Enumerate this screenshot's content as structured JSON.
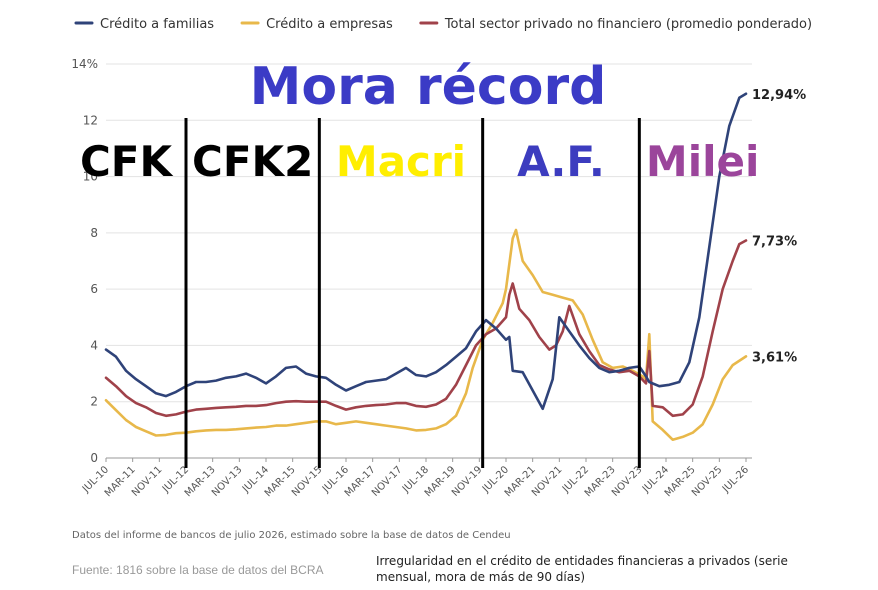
{
  "chart_data": {
    "type": "line",
    "title": "Mora récord",
    "y_unit": "%",
    "ylim": [
      0,
      14
    ],
    "yticks": [
      "0",
      "2",
      "4",
      "6",
      "8",
      "10",
      "12",
      "14%"
    ],
    "grid": true,
    "legend_position": "top-left",
    "x_ticks": [
      "JUL-10",
      "MAR-11",
      "NOV-11",
      "JUL-12",
      "MAR-13",
      "NOV-13",
      "JUL-14",
      "MAR-15",
      "NOV-15",
      "JUL-16",
      "MAR-17",
      "NOV-17",
      "JUL-18",
      "MAR-19",
      "NOV-19",
      "JUL-20",
      "MAR-21",
      "NOV-21",
      "JUL-22",
      "MAR-23",
      "NOV-23",
      "JUL-24",
      "MAR-25",
      "NOV-25",
      "JUL-26"
    ],
    "x_index_domain": [
      0,
      192
    ],
    "series": [
      {
        "name": "Crédito a familias",
        "color": "#2f4379",
        "end_label": "12,94%",
        "points": [
          [
            0,
            3.85
          ],
          [
            3,
            3.6
          ],
          [
            6,
            3.1
          ],
          [
            9,
            2.8
          ],
          [
            12,
            2.55
          ],
          [
            15,
            2.3
          ],
          [
            18,
            2.2
          ],
          [
            21,
            2.35
          ],
          [
            24,
            2.55
          ],
          [
            27,
            2.7
          ],
          [
            30,
            2.7
          ],
          [
            33,
            2.75
          ],
          [
            36,
            2.85
          ],
          [
            39,
            2.9
          ],
          [
            42,
            3.0
          ],
          [
            45,
            2.85
          ],
          [
            48,
            2.65
          ],
          [
            51,
            2.9
          ],
          [
            54,
            3.2
          ],
          [
            57,
            3.25
          ],
          [
            60,
            3.0
          ],
          [
            63,
            2.9
          ],
          [
            66,
            2.85
          ],
          [
            69,
            2.6
          ],
          [
            72,
            2.4
          ],
          [
            75,
            2.55
          ],
          [
            78,
            2.7
          ],
          [
            81,
            2.75
          ],
          [
            84,
            2.8
          ],
          [
            87,
            3.0
          ],
          [
            90,
            3.2
          ],
          [
            93,
            2.95
          ],
          [
            96,
            2.9
          ],
          [
            99,
            3.05
          ],
          [
            102,
            3.3
          ],
          [
            105,
            3.6
          ],
          [
            108,
            3.9
          ],
          [
            111,
            4.5
          ],
          [
            114,
            4.9
          ],
          [
            117,
            4.6
          ],
          [
            120,
            4.2
          ],
          [
            121,
            4.3
          ],
          [
            122,
            3.1
          ],
          [
            125,
            3.05
          ],
          [
            128,
            2.4
          ],
          [
            131,
            1.75
          ],
          [
            134,
            2.8
          ],
          [
            136,
            5.0
          ],
          [
            139,
            4.5
          ],
          [
            142,
            4.0
          ],
          [
            145,
            3.55
          ],
          [
            148,
            3.2
          ],
          [
            151,
            3.05
          ],
          [
            154,
            3.1
          ],
          [
            157,
            3.2
          ],
          [
            160,
            3.25
          ],
          [
            162,
            2.9
          ],
          [
            163,
            2.7
          ],
          [
            166,
            2.55
          ],
          [
            169,
            2.6
          ],
          [
            172,
            2.7
          ],
          [
            175,
            3.4
          ],
          [
            178,
            5.0
          ],
          [
            181,
            7.5
          ],
          [
            184,
            10.0
          ],
          [
            187,
            11.8
          ],
          [
            190,
            12.8
          ],
          [
            192,
            12.94
          ]
        ]
      },
      {
        "name": "Crédito a empresas",
        "color": "#e8b84a",
        "end_label": "3,61%",
        "points": [
          [
            0,
            2.05
          ],
          [
            3,
            1.7
          ],
          [
            6,
            1.35
          ],
          [
            9,
            1.1
          ],
          [
            12,
            0.95
          ],
          [
            15,
            0.8
          ],
          [
            18,
            0.82
          ],
          [
            21,
            0.88
          ],
          [
            24,
            0.9
          ],
          [
            27,
            0.95
          ],
          [
            30,
            0.98
          ],
          [
            33,
            1.0
          ],
          [
            36,
            1.0
          ],
          [
            39,
            1.02
          ],
          [
            42,
            1.05
          ],
          [
            45,
            1.08
          ],
          [
            48,
            1.1
          ],
          [
            51,
            1.15
          ],
          [
            54,
            1.15
          ],
          [
            57,
            1.2
          ],
          [
            60,
            1.25
          ],
          [
            63,
            1.3
          ],
          [
            66,
            1.3
          ],
          [
            69,
            1.2
          ],
          [
            72,
            1.25
          ],
          [
            75,
            1.3
          ],
          [
            78,
            1.25
          ],
          [
            81,
            1.2
          ],
          [
            84,
            1.15
          ],
          [
            87,
            1.1
          ],
          [
            90,
            1.05
          ],
          [
            93,
            0.98
          ],
          [
            96,
            1.0
          ],
          [
            99,
            1.05
          ],
          [
            102,
            1.2
          ],
          [
            105,
            1.5
          ],
          [
            108,
            2.3
          ],
          [
            110,
            3.2
          ],
          [
            113,
            4.2
          ],
          [
            116,
            4.8
          ],
          [
            119,
            5.5
          ],
          [
            120,
            6.0
          ],
          [
            122,
            7.8
          ],
          [
            123,
            8.1
          ],
          [
            125,
            7.0
          ],
          [
            128,
            6.5
          ],
          [
            131,
            5.9
          ],
          [
            134,
            5.8
          ],
          [
            137,
            5.7
          ],
          [
            140,
            5.6
          ],
          [
            143,
            5.1
          ],
          [
            146,
            4.2
          ],
          [
            149,
            3.4
          ],
          [
            152,
            3.2
          ],
          [
            155,
            3.25
          ],
          [
            158,
            3.1
          ],
          [
            161,
            2.9
          ],
          [
            162,
            2.8
          ],
          [
            163,
            4.4
          ],
          [
            164,
            1.3
          ],
          [
            167,
            1.0
          ],
          [
            170,
            0.65
          ],
          [
            173,
            0.75
          ],
          [
            176,
            0.9
          ],
          [
            179,
            1.2
          ],
          [
            182,
            1.9
          ],
          [
            185,
            2.8
          ],
          [
            188,
            3.3
          ],
          [
            192,
            3.61
          ]
        ]
      },
      {
        "name": "Total sector privado no financiero (promedio ponderado)",
        "color": "#a0424a",
        "end_label": "7,73%",
        "points": [
          [
            0,
            2.85
          ],
          [
            3,
            2.55
          ],
          [
            6,
            2.2
          ],
          [
            9,
            1.95
          ],
          [
            12,
            1.8
          ],
          [
            15,
            1.6
          ],
          [
            18,
            1.5
          ],
          [
            21,
            1.55
          ],
          [
            24,
            1.65
          ],
          [
            27,
            1.72
          ],
          [
            30,
            1.75
          ],
          [
            33,
            1.78
          ],
          [
            36,
            1.8
          ],
          [
            39,
            1.82
          ],
          [
            42,
            1.85
          ],
          [
            45,
            1.85
          ],
          [
            48,
            1.88
          ],
          [
            51,
            1.95
          ],
          [
            54,
            2.0
          ],
          [
            57,
            2.02
          ],
          [
            60,
            2.0
          ],
          [
            63,
            2.0
          ],
          [
            66,
            2.0
          ],
          [
            69,
            1.85
          ],
          [
            72,
            1.72
          ],
          [
            75,
            1.8
          ],
          [
            78,
            1.85
          ],
          [
            81,
            1.88
          ],
          [
            84,
            1.9
          ],
          [
            87,
            1.95
          ],
          [
            90,
            1.95
          ],
          [
            93,
            1.85
          ],
          [
            96,
            1.82
          ],
          [
            99,
            1.9
          ],
          [
            102,
            2.1
          ],
          [
            105,
            2.6
          ],
          [
            108,
            3.3
          ],
          [
            111,
            4.0
          ],
          [
            114,
            4.4
          ],
          [
            117,
            4.6
          ],
          [
            120,
            5.0
          ],
          [
            121,
            5.8
          ],
          [
            122,
            6.2
          ],
          [
            124,
            5.3
          ],
          [
            127,
            4.9
          ],
          [
            130,
            4.3
          ],
          [
            133,
            3.85
          ],
          [
            135,
            4.0
          ],
          [
            137,
            4.5
          ],
          [
            139,
            5.4
          ],
          [
            142,
            4.4
          ],
          [
            145,
            3.8
          ],
          [
            148,
            3.3
          ],
          [
            151,
            3.15
          ],
          [
            154,
            3.05
          ],
          [
            157,
            3.1
          ],
          [
            160,
            2.9
          ],
          [
            162,
            2.65
          ],
          [
            163,
            3.8
          ],
          [
            164,
            1.85
          ],
          [
            167,
            1.8
          ],
          [
            170,
            1.5
          ],
          [
            173,
            1.55
          ],
          [
            176,
            1.9
          ],
          [
            179,
            2.9
          ],
          [
            182,
            4.5
          ],
          [
            185,
            6.0
          ],
          [
            188,
            7.0
          ],
          [
            190,
            7.6
          ],
          [
            192,
            7.73
          ]
        ]
      }
    ],
    "period_labels": [
      {
        "label": "CFK",
        "color": "#000000"
      },
      {
        "label": "CFK2",
        "color": "#000000"
      },
      {
        "label": "Macri",
        "color": "#ffee00"
      },
      {
        "label": "A.F.",
        "color": "#3c3cbf"
      },
      {
        "label": "Milei",
        "color": "#9b459b"
      }
    ],
    "period_dividers_x": [
      24,
      64,
      113,
      160
    ]
  },
  "footer": {
    "note": "Datos del informe de bancos de julio 2026, estimado sobre la base de datos de Cendeu",
    "source": "Fuente: 1816 sobre la base de datos del BCRA",
    "caption": "Irregularidad en el crédito de entidades financieras a privados (serie mensual, mora de más de 90 días)"
  }
}
